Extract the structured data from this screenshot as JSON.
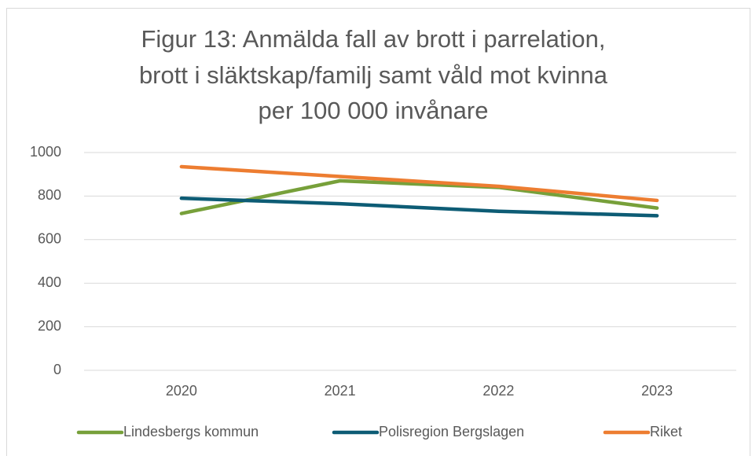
{
  "chart_data": {
    "type": "line",
    "title": [
      "Figur 13: Anmälda fall av brott i parrelation,",
      "brott i släktskap/familj samt våld mot kvinna",
      "per 100 000 invånare"
    ],
    "categories": [
      "2020",
      "2021",
      "2022",
      "2023"
    ],
    "series": [
      {
        "name": "Lindesbergs kommun",
        "color": "#77a03a",
        "values": [
          720,
          870,
          840,
          745
        ]
      },
      {
        "name": "Polisregion Bergslagen",
        "color": "#0d5c75",
        "values": [
          790,
          765,
          730,
          710
        ]
      },
      {
        "name": "Riket",
        "color": "#ed7d31",
        "values": [
          935,
          890,
          845,
          780
        ]
      }
    ],
    "ylim": [
      0,
      1000
    ],
    "yticks": [
      0,
      200,
      400,
      600,
      800,
      1000
    ],
    "grid": true,
    "legend": "bottom"
  }
}
